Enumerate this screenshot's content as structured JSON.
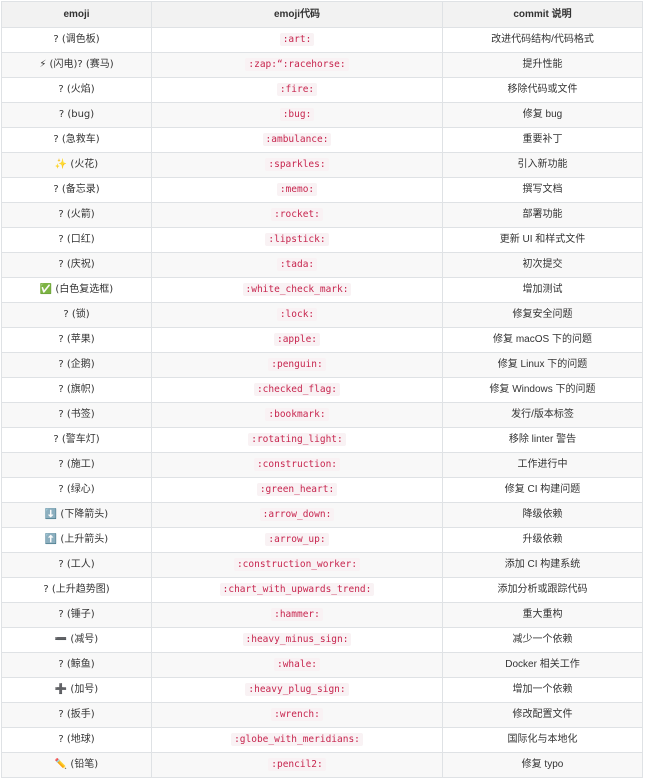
{
  "table": {
    "headers": [
      "emoji",
      "emoji代码",
      "commit 说明"
    ],
    "rows": [
      {
        "emoji": "? (调色板)",
        "code": ":art:",
        "desc": "改进代码结构/代码格式"
      },
      {
        "emoji": "⚡ (闪电)? (赛马)",
        "code": ":zap:“:racehorse:",
        "desc": "提升性能"
      },
      {
        "emoji": "? (火焰)",
        "code": ":fire:",
        "desc": "移除代码或文件"
      },
      {
        "emoji": "? (bug)",
        "code": ":bug:",
        "desc": "修复 bug"
      },
      {
        "emoji": "? (急救车)",
        "code": ":ambulance:",
        "desc": "重要补丁"
      },
      {
        "emoji": "✨ (火花)",
        "code": ":sparkles:",
        "desc": "引入新功能"
      },
      {
        "emoji": "? (备忘录)",
        "code": ":memo:",
        "desc": "撰写文档"
      },
      {
        "emoji": "? (火箭)",
        "code": ":rocket:",
        "desc": "部署功能"
      },
      {
        "emoji": "? (口红)",
        "code": ":lipstick:",
        "desc": "更新 UI 和样式文件"
      },
      {
        "emoji": "? (庆祝)",
        "code": ":tada:",
        "desc": "初次提交"
      },
      {
        "emoji": "✅ (白色复选框)",
        "code": ":white_check_mark:",
        "desc": "增加测试"
      },
      {
        "emoji": "? (锁)",
        "code": ":lock:",
        "desc": "修复安全问题"
      },
      {
        "emoji": "? (苹果)",
        "code": ":apple:",
        "desc": "修复 macOS 下的问题"
      },
      {
        "emoji": "? (企鹅)",
        "code": ":penguin:",
        "desc": "修复 Linux 下的问题"
      },
      {
        "emoji": "? (旗帜)",
        "code": ":checked_flag:",
        "desc": "修复 Windows 下的问题"
      },
      {
        "emoji": "? (书签)",
        "code": ":bookmark:",
        "desc": "发行/版本标签"
      },
      {
        "emoji": "? (警车灯)",
        "code": ":rotating_light:",
        "desc": "移除 linter 警告"
      },
      {
        "emoji": "? (施工)",
        "code": ":construction:",
        "desc": "工作进行中"
      },
      {
        "emoji": "? (绿心)",
        "code": ":green_heart:",
        "desc": "修复 CI 构建问题"
      },
      {
        "emoji": "⬇️ (下降箭头)",
        "code": ":arrow_down:",
        "desc": "降级依赖"
      },
      {
        "emoji": "⬆️ (上升箭头)",
        "code": ":arrow_up:",
        "desc": "升级依赖"
      },
      {
        "emoji": "? (工人)",
        "code": ":construction_worker:",
        "desc": "添加 CI 构建系统"
      },
      {
        "emoji": "? (上升趋势图)",
        "code": ":chart_with_upwards_trend:",
        "desc": "添加分析或跟踪代码"
      },
      {
        "emoji": "? (锤子)",
        "code": ":hammer:",
        "desc": "重大重构"
      },
      {
        "emoji": "➖ (减号)",
        "code": ":heavy_minus_sign:",
        "desc": "减少一个依赖"
      },
      {
        "emoji": "? (鲸鱼)",
        "code": ":whale:",
        "desc": "Docker 相关工作"
      },
      {
        "emoji": "➕ (加号)",
        "code": ":heavy_plug_sign:",
        "desc": "增加一个依赖"
      },
      {
        "emoji": "? (扳手)",
        "code": ":wrench:",
        "desc": "修改配置文件"
      },
      {
        "emoji": "? (地球)",
        "code": ":globe_with_meridians:",
        "desc": "国际化与本地化"
      },
      {
        "emoji": "✏️ (铅笔)",
        "code": ":pencil2:",
        "desc": "修复 typo"
      }
    ]
  }
}
